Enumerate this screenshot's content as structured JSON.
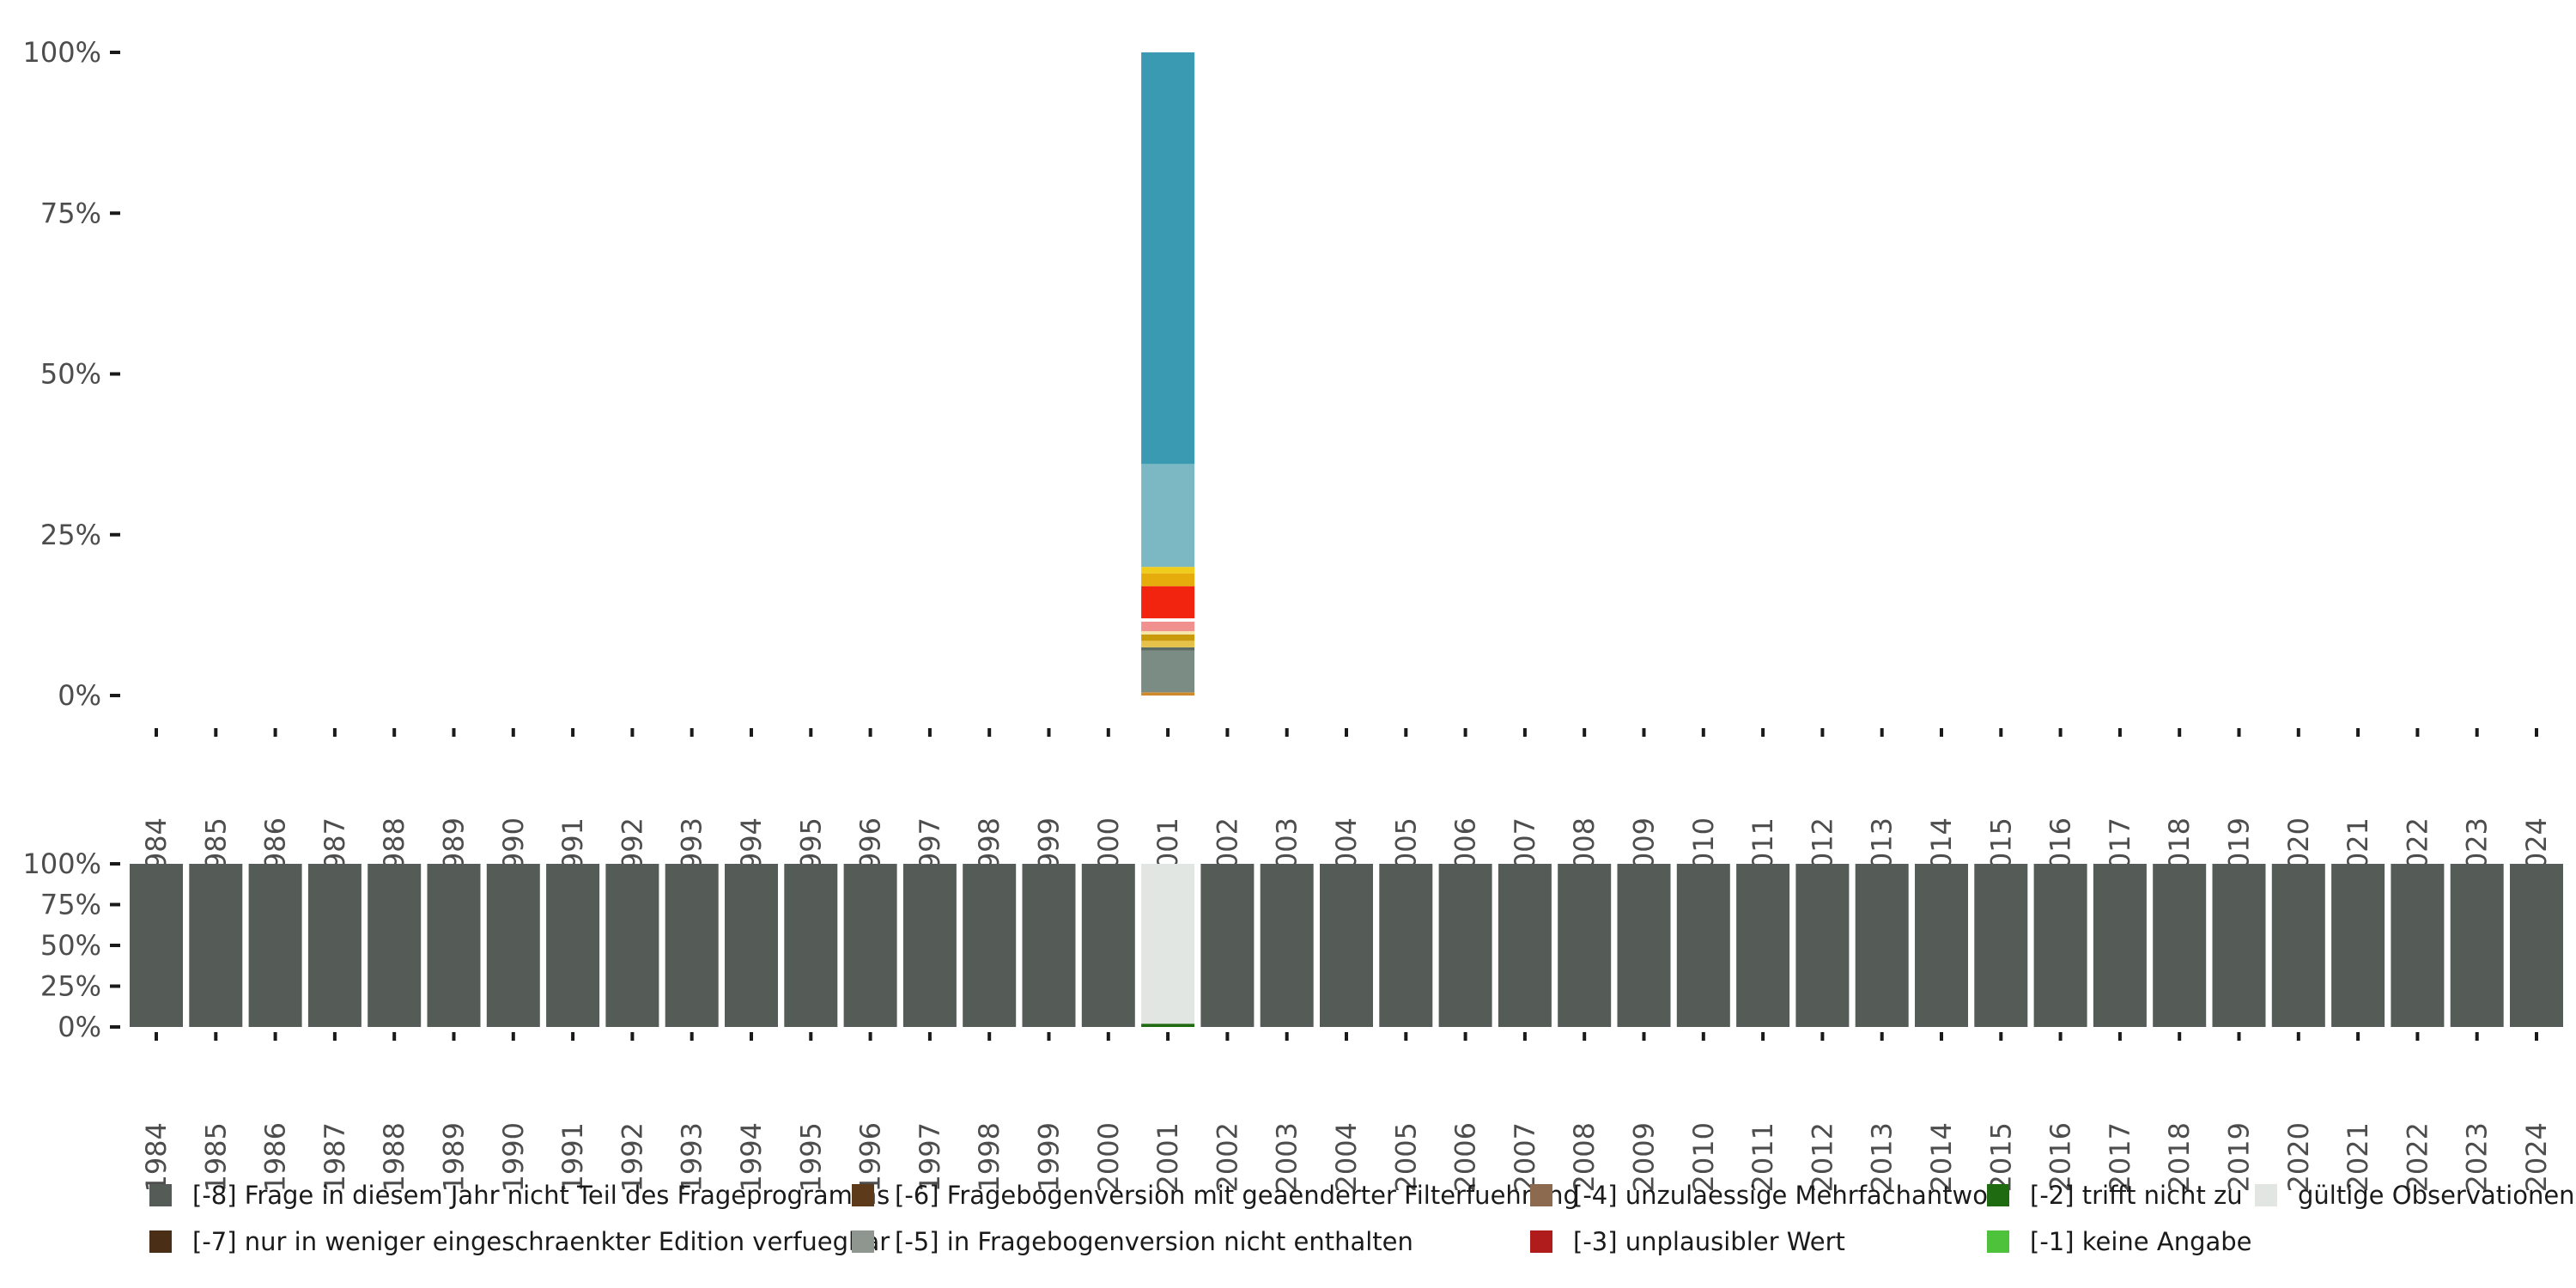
{
  "chart_data": [
    {
      "type": "bar",
      "title": "",
      "xlabel": "",
      "ylabel": "",
      "ylim": [
        0,
        100
      ],
      "yticks": [
        "0%",
        "25%",
        "50%",
        "75%",
        "100%"
      ],
      "categories": [
        "1984",
        "1985",
        "1986",
        "1987",
        "1988",
        "1989",
        "1990",
        "1991",
        "1992",
        "1993",
        "1994",
        "1995",
        "1996",
        "1997",
        "1998",
        "1999",
        "2000",
        "2001",
        "2002",
        "2003",
        "2004",
        "2005",
        "2006",
        "2007",
        "2008",
        "2009",
        "2010",
        "2011",
        "2012",
        "2013",
        "2014",
        "2015",
        "2016",
        "2017",
        "2018",
        "2019",
        "2020",
        "2021",
        "2022",
        "2023",
        "2024"
      ],
      "stacks": [
        {
          "category": "2001",
          "segments": [
            {
              "value": 0.5,
              "color": "#d08a2e"
            },
            {
              "value": 6.5,
              "color": "#7a8c84"
            },
            {
              "value": 0.5,
              "color": "#5b6b64"
            },
            {
              "value": 1.0,
              "color": "#e6c24a"
            },
            {
              "value": 1.0,
              "color": "#c99a0c"
            },
            {
              "value": 0.5,
              "color": "#f5e6a6"
            },
            {
              "value": 1.5,
              "color": "#f0908f"
            },
            {
              "value": 0.5,
              "color": "#ffffff"
            },
            {
              "value": 5.0,
              "color": "#f2230f"
            },
            {
              "value": 2.0,
              "color": "#e5ac0c"
            },
            {
              "value": 1.0,
              "color": "#f0cc1c"
            },
            {
              "value": 16.0,
              "color": "#7bb8c3"
            },
            {
              "value": 64.0,
              "color": "#3a9ab1"
            }
          ]
        }
      ]
    },
    {
      "type": "bar",
      "title": "",
      "xlabel": "",
      "ylabel": "",
      "ylim": [
        0,
        100
      ],
      "yticks": [
        "0%",
        "25%",
        "50%",
        "75%",
        "100%"
      ],
      "categories": [
        "1984",
        "1985",
        "1986",
        "1987",
        "1988",
        "1989",
        "1990",
        "1991",
        "1992",
        "1993",
        "1994",
        "1995",
        "1996",
        "1997",
        "1998",
        "1999",
        "2000",
        "2001",
        "2002",
        "2003",
        "2004",
        "2005",
        "2006",
        "2007",
        "2008",
        "2009",
        "2010",
        "2011",
        "2012",
        "2013",
        "2014",
        "2015",
        "2016",
        "2017",
        "2018",
        "2019",
        "2020",
        "2021",
        "2022",
        "2023",
        "2024"
      ],
      "series": [
        {
          "name": "[-8] Frage in diesem Jahr nicht Teil des Frageprogramms",
          "color": "#555c57",
          "values": [
            100,
            100,
            100,
            100,
            100,
            100,
            100,
            100,
            100,
            100,
            100,
            100,
            100,
            100,
            100,
            100,
            100,
            0,
            100,
            100,
            100,
            100,
            100,
            100,
            100,
            100,
            100,
            100,
            100,
            100,
            100,
            100,
            100,
            100,
            100,
            100,
            100,
            100,
            100,
            100,
            100
          ]
        },
        {
          "name": "[-2] trifft nicht zu",
          "color": "#1f6b12",
          "values": [
            0,
            0,
            0,
            0,
            0,
            0,
            0,
            0,
            0,
            0,
            0,
            0,
            0,
            0,
            0,
            0,
            0,
            2,
            0,
            0,
            0,
            0,
            0,
            0,
            0,
            0,
            0,
            0,
            0,
            0,
            0,
            0,
            0,
            0,
            0,
            0,
            0,
            0,
            0,
            0,
            0
          ]
        },
        {
          "name": "gültige Observationen",
          "color": "#e2e6e2",
          "values": [
            0,
            0,
            0,
            0,
            0,
            0,
            0,
            0,
            0,
            0,
            0,
            0,
            0,
            0,
            0,
            0,
            0,
            98,
            0,
            0,
            0,
            0,
            0,
            0,
            0,
            0,
            0,
            0,
            0,
            0,
            0,
            0,
            0,
            0,
            0,
            0,
            0,
            0,
            0,
            0,
            0
          ]
        }
      ]
    }
  ],
  "legend": [
    {
      "label": "[-8] Frage in diesem Jahr nicht Teil des Frageprogramms",
      "color": "#555c57"
    },
    {
      "label": "[-7] nur in weniger eingeschraenkter Edition verfuegbar",
      "color": "#4a2e16"
    },
    {
      "label": "[-6] Fragebogenversion mit geaenderter Filterfuehrung",
      "color": "#5c3a1a"
    },
    {
      "label": "[-5] in Fragebogenversion nicht enthalten",
      "color": "#8f9690"
    },
    {
      "label": "[-4] unzulaessige Mehrfachantwort",
      "color": "#8c6a50"
    },
    {
      "label": "[-3] unplausibler Wert",
      "color": "#b01c1c"
    },
    {
      "label": "[-2] trifft nicht zu",
      "color": "#1f6b12"
    },
    {
      "label": "[-1] keine Angabe",
      "color": "#4fc23b"
    },
    {
      "label": "gültige Observationen",
      "color": "#e2e6e2"
    }
  ]
}
